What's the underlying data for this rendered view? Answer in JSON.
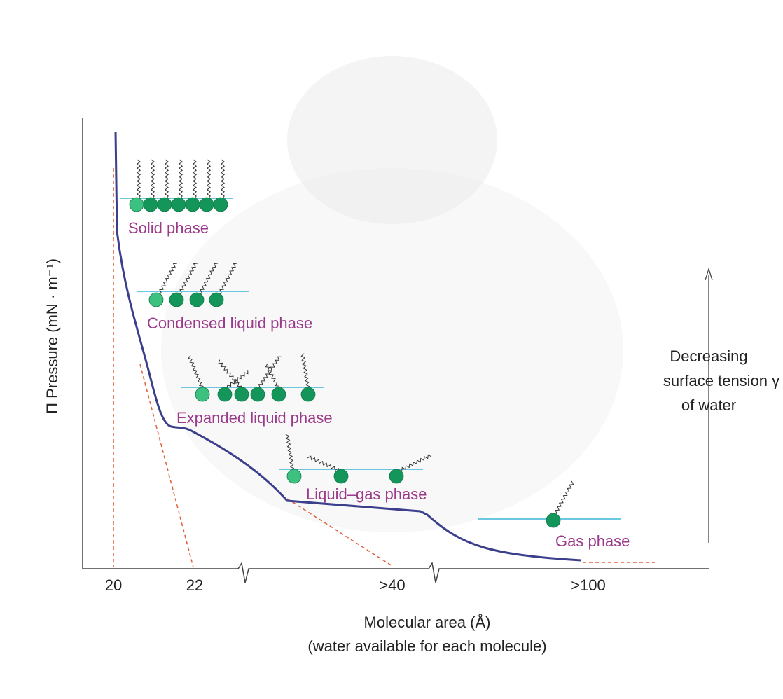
{
  "y_axis_label": "Π Pressure (mN · m⁻¹)",
  "x_axis_label": [
    "Molecular area (Å)",
    "(water available for each molecule)"
  ],
  "x_tick_labels": [
    "20",
    "22",
    ">40",
    ">100"
  ],
  "phases": [
    "Solid phase",
    "Condensed liquid phase",
    "Expanded liquid phase",
    "Liquid–gas phase",
    "Gas phase"
  ],
  "side_note": [
    "Decreasing",
    "surface tension γ",
    "of water"
  ]
}
